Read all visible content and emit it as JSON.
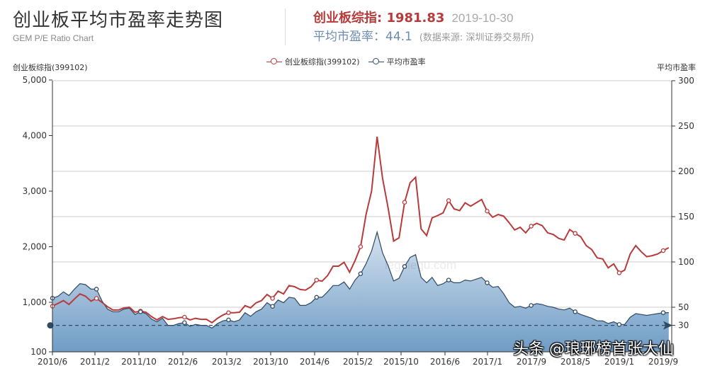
{
  "header": {
    "title": "创业板平均市盈率走势图",
    "subtitle": "GEM P/E Ratio Chart",
    "index_label": "创业板综指: 1981.83",
    "date": "2019-10-30",
    "pe_label": "平均市盈率：44.1",
    "source": "(数据来源: 深圳证券交易所)"
  },
  "colors": {
    "index_line": "#b83b3b",
    "pe_line": "#2f4a63",
    "area_top": "#d5e2ee",
    "area_bottom": "#6f9cc6",
    "grid": "#cccccc",
    "reference_line": "#2f4a63"
  },
  "watermark": "头条 @琅琊榜首张大仙",
  "site_watermark": "legulegu.com",
  "chart_data": {
    "type": "line",
    "title": "创业板平均市盈率走势图",
    "subtitle": "GEM P/E Ratio Chart",
    "legend": [
      "创业板综指(399102)",
      "平均市盈率"
    ],
    "legend_position": "top",
    "grid": true,
    "x_ticks": [
      "2010/6",
      "2011/2",
      "2011/10",
      "2012/6",
      "2013/2",
      "2013/10",
      "2014/6",
      "2015/2",
      "2015/10",
      "2016/6",
      "2017/1",
      "2017/9",
      "2018/5",
      "2019/1",
      "2019/9"
    ],
    "y_left": {
      "label": "创业板综指(399102)",
      "ticks": [
        100,
        1000,
        2000,
        3000,
        4000,
        5000
      ],
      "ylim": [
        100,
        5000
      ]
    },
    "y_right": {
      "label": "平均市盈率",
      "ticks": [
        30,
        50,
        100,
        150,
        200,
        250,
        300
      ],
      "ylim": [
        0,
        300
      ]
    },
    "reference_line": {
      "axis": "right",
      "value": 30
    },
    "series": [
      {
        "name": "创业板综指(399102)",
        "axis": "left",
        "type": "line",
        "points": [
          [
            "2010/6",
            930
          ],
          [
            "2010/7",
            980
          ],
          [
            "2010/8",
            1030
          ],
          [
            "2010/9",
            960
          ],
          [
            "2010/10",
            1060
          ],
          [
            "2010/11",
            1150
          ],
          [
            "2010/12",
            1110
          ],
          [
            "2011/1",
            1020
          ],
          [
            "2011/2",
            1070
          ],
          [
            "2011/3",
            1000
          ],
          [
            "2011/4",
            920
          ],
          [
            "2011/5",
            860
          ],
          [
            "2011/6",
            860
          ],
          [
            "2011/7",
            900
          ],
          [
            "2011/8",
            910
          ],
          [
            "2011/9",
            820
          ],
          [
            "2011/10",
            840
          ],
          [
            "2011/11",
            820
          ],
          [
            "2011/12",
            740
          ],
          [
            "2012/1",
            680
          ],
          [
            "2012/2",
            740
          ],
          [
            "2012/3",
            690
          ],
          [
            "2012/4",
            700
          ],
          [
            "2012/5",
            720
          ],
          [
            "2012/6",
            730
          ],
          [
            "2012/7",
            680
          ],
          [
            "2012/8",
            710
          ],
          [
            "2012/9",
            690
          ],
          [
            "2012/10",
            690
          ],
          [
            "2012/11",
            630
          ],
          [
            "2012/12",
            710
          ],
          [
            "2013/1",
            770
          ],
          [
            "2013/2",
            810
          ],
          [
            "2013/3",
            810
          ],
          [
            "2013/4",
            820
          ],
          [
            "2013/5",
            940
          ],
          [
            "2013/6",
            900
          ],
          [
            "2013/7",
            990
          ],
          [
            "2013/8",
            1030
          ],
          [
            "2013/9",
            1140
          ],
          [
            "2013/10",
            1070
          ],
          [
            "2013/11",
            1200
          ],
          [
            "2013/12",
            1150
          ],
          [
            "2014/1",
            1300
          ],
          [
            "2014/2",
            1280
          ],
          [
            "2014/3",
            1230
          ],
          [
            "2014/4",
            1220
          ],
          [
            "2014/5",
            1280
          ],
          [
            "2014/6",
            1400
          ],
          [
            "2014/7",
            1380
          ],
          [
            "2014/8",
            1480
          ],
          [
            "2014/9",
            1650
          ],
          [
            "2014/10",
            1650
          ],
          [
            "2014/11",
            1720
          ],
          [
            "2014/12",
            1540
          ],
          [
            "2015/1",
            1750
          ],
          [
            "2015/2",
            2000
          ],
          [
            "2015/3",
            2580
          ],
          [
            "2015/4",
            3000
          ],
          [
            "2015/5",
            3980
          ],
          [
            "2015/6",
            3230
          ],
          [
            "2015/7",
            2700
          ],
          [
            "2015/8",
            2100
          ],
          [
            "2015/9",
            2160
          ],
          [
            "2015/10",
            2800
          ],
          [
            "2015/11",
            3150
          ],
          [
            "2015/12",
            3250
          ],
          [
            "2016/1",
            2320
          ],
          [
            "2016/2",
            2200
          ],
          [
            "2016/3",
            2520
          ],
          [
            "2016/4",
            2560
          ],
          [
            "2016/5",
            2610
          ],
          [
            "2016/6",
            2830
          ],
          [
            "2016/7",
            2680
          ],
          [
            "2016/8",
            2650
          ],
          [
            "2016/9",
            2790
          ],
          [
            "2016/10",
            2730
          ],
          [
            "2016/11",
            2790
          ],
          [
            "2016/12",
            2850
          ],
          [
            "2017/1",
            2640
          ],
          [
            "2017/2",
            2530
          ],
          [
            "2017/3",
            2580
          ],
          [
            "2017/4",
            2550
          ],
          [
            "2017/5",
            2430
          ],
          [
            "2017/6",
            2300
          ],
          [
            "2017/7",
            2350
          ],
          [
            "2017/8",
            2250
          ],
          [
            "2017/9",
            2370
          ],
          [
            "2017/10",
            2420
          ],
          [
            "2017/11",
            2380
          ],
          [
            "2017/12",
            2250
          ],
          [
            "2018/1",
            2220
          ],
          [
            "2018/2",
            2150
          ],
          [
            "2018/3",
            2120
          ],
          [
            "2018/4",
            2310
          ],
          [
            "2018/5",
            2240
          ],
          [
            "2018/6",
            2180
          ],
          [
            "2018/7",
            2020
          ],
          [
            "2018/8",
            1950
          ],
          [
            "2018/9",
            1800
          ],
          [
            "2018/10",
            1780
          ],
          [
            "2018/11",
            1620
          ],
          [
            "2018/12",
            1690
          ],
          [
            "2019/1",
            1530
          ],
          [
            "2019/2",
            1580
          ],
          [
            "2019/3",
            1870
          ],
          [
            "2019/4",
            2020
          ],
          [
            "2019/5",
            1910
          ],
          [
            "2019/6",
            1820
          ],
          [
            "2019/7",
            1840
          ],
          [
            "2019/8",
            1870
          ],
          [
            "2019/9",
            1930
          ],
          [
            "2019/10",
            1982
          ]
        ],
        "markers_at": [
          "2010/6",
          "2011/2",
          "2011/10",
          "2012/6",
          "2013/2",
          "2013/10",
          "2014/6",
          "2015/2",
          "2015/10",
          "2016/6",
          "2017/1",
          "2017/9",
          "2018/5",
          "2019/1",
          "2019/9"
        ]
      },
      {
        "name": "平均市盈率",
        "axis": "right",
        "type": "area",
        "points": [
          [
            "2010/6",
            60
          ],
          [
            "2010/7",
            62
          ],
          [
            "2010/8",
            67
          ],
          [
            "2010/9",
            63
          ],
          [
            "2010/10",
            70
          ],
          [
            "2010/11",
            76
          ],
          [
            "2010/12",
            75
          ],
          [
            "2011/1",
            70
          ],
          [
            "2011/2",
            70
          ],
          [
            "2011/3",
            57
          ],
          [
            "2011/4",
            48
          ],
          [
            "2011/5",
            45
          ],
          [
            "2011/6",
            45
          ],
          [
            "2011/7",
            48
          ],
          [
            "2011/8",
            49
          ],
          [
            "2011/9",
            42
          ],
          [
            "2011/10",
            45
          ],
          [
            "2011/11",
            43
          ],
          [
            "2011/12",
            37
          ],
          [
            "2012/1",
            34
          ],
          [
            "2012/2",
            38
          ],
          [
            "2012/3",
            30
          ],
          [
            "2012/4",
            30
          ],
          [
            "2012/5",
            32
          ],
          [
            "2012/6",
            33
          ],
          [
            "2012/7",
            29
          ],
          [
            "2012/8",
            31
          ],
          [
            "2012/9",
            30
          ],
          [
            "2012/10",
            30
          ],
          [
            "2012/11",
            27
          ],
          [
            "2012/12",
            32
          ],
          [
            "2013/1",
            35
          ],
          [
            "2013/2",
            36
          ],
          [
            "2013/3",
            34
          ],
          [
            "2013/4",
            36
          ],
          [
            "2013/5",
            44
          ],
          [
            "2013/6",
            40
          ],
          [
            "2013/7",
            45
          ],
          [
            "2013/8",
            48
          ],
          [
            "2013/9",
            55
          ],
          [
            "2013/10",
            51
          ],
          [
            "2013/11",
            58
          ],
          [
            "2013/12",
            55
          ],
          [
            "2014/1",
            61
          ],
          [
            "2014/2",
            60
          ],
          [
            "2014/3",
            52
          ],
          [
            "2014/4",
            52
          ],
          [
            "2014/5",
            55
          ],
          [
            "2014/6",
            61
          ],
          [
            "2014/7",
            61
          ],
          [
            "2014/8",
            67
          ],
          [
            "2014/9",
            74
          ],
          [
            "2014/10",
            74
          ],
          [
            "2014/11",
            78
          ],
          [
            "2014/12",
            70
          ],
          [
            "2015/1",
            80
          ],
          [
            "2015/2",
            87
          ],
          [
            "2015/3",
            98
          ],
          [
            "2015/4",
            112
          ],
          [
            "2015/5",
            133
          ],
          [
            "2015/6",
            110
          ],
          [
            "2015/7",
            96
          ],
          [
            "2015/8",
            79
          ],
          [
            "2015/9",
            82
          ],
          [
            "2015/10",
            95
          ],
          [
            "2015/11",
            105
          ],
          [
            "2015/12",
            108
          ],
          [
            "2016/1",
            83
          ],
          [
            "2016/2",
            77
          ],
          [
            "2016/3",
            83
          ],
          [
            "2016/4",
            74
          ],
          [
            "2016/5",
            76
          ],
          [
            "2016/6",
            80
          ],
          [
            "2016/7",
            77
          ],
          [
            "2016/8",
            77
          ],
          [
            "2016/9",
            80
          ],
          [
            "2016/10",
            79
          ],
          [
            "2016/11",
            81
          ],
          [
            "2016/12",
            83
          ],
          [
            "2017/1",
            77
          ],
          [
            "2017/2",
            72
          ],
          [
            "2017/3",
            73
          ],
          [
            "2017/4",
            65
          ],
          [
            "2017/5",
            55
          ],
          [
            "2017/6",
            50
          ],
          [
            "2017/7",
            51
          ],
          [
            "2017/8",
            49
          ],
          [
            "2017/9",
            52
          ],
          [
            "2017/10",
            54
          ],
          [
            "2017/11",
            53
          ],
          [
            "2017/12",
            51
          ],
          [
            "2018/1",
            50
          ],
          [
            "2018/2",
            48
          ],
          [
            "2018/3",
            47
          ],
          [
            "2018/4",
            49
          ],
          [
            "2018/5",
            45
          ],
          [
            "2018/6",
            42
          ],
          [
            "2018/7",
            40
          ],
          [
            "2018/8",
            38
          ],
          [
            "2018/9",
            35
          ],
          [
            "2018/10",
            35
          ],
          [
            "2018/11",
            32
          ],
          [
            "2018/12",
            34
          ],
          [
            "2019/1",
            31
          ],
          [
            "2019/2",
            31
          ],
          [
            "2019/3",
            39
          ],
          [
            "2019/4",
            43
          ],
          [
            "2019/5",
            42
          ],
          [
            "2019/6",
            41
          ],
          [
            "2019/7",
            42
          ],
          [
            "2019/8",
            43
          ],
          [
            "2019/9",
            44
          ],
          [
            "2019/10",
            44.1
          ]
        ],
        "markers_at": [
          "2010/6",
          "2011/2",
          "2011/10",
          "2012/6",
          "2013/2",
          "2013/10",
          "2014/6",
          "2015/2",
          "2015/10",
          "2016/6",
          "2017/1",
          "2017/9",
          "2018/5",
          "2019/1",
          "2019/9"
        ]
      }
    ]
  }
}
